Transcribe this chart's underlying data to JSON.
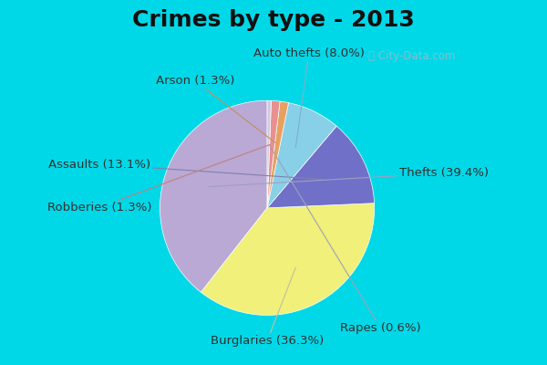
{
  "title": "Crimes by type - 2013",
  "labels": [
    "Thefts",
    "Burglaries",
    "Assaults",
    "Auto thefts",
    "Arson",
    "Robberies",
    "Rapes"
  ],
  "values": [
    39.4,
    36.3,
    13.1,
    8.0,
    1.3,
    1.3,
    0.6
  ],
  "colors": [
    "#b9a9d4",
    "#f0f07a",
    "#7070c8",
    "#88d0e8",
    "#e8a060",
    "#e89090",
    "#d4c8e0"
  ],
  "background_top": "#00d8e8",
  "background_main": "#c8e8d8",
  "title_fontsize": 18,
  "label_fontsize": 9.5,
  "startangle": 90
}
